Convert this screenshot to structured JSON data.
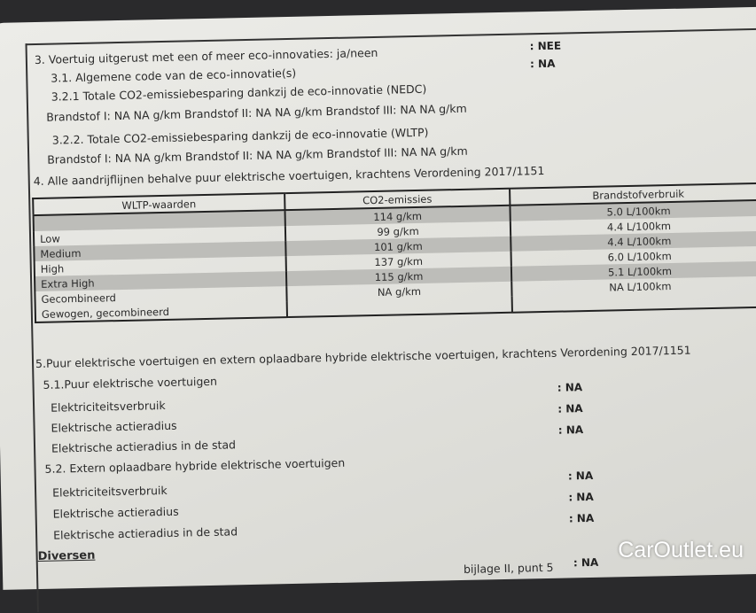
{
  "section3": {
    "title": "3. Voertuig uitgerust met een of meer eco-innovaties: ja/neen",
    "title_value": ": NEE",
    "s31": "3.1. Algemene code van de eco-innovatie(s)",
    "s31_value": ": NA",
    "s321": "3.2.1 Totale CO2-emissiebesparing dankzij de eco-innovatie (NEDC)",
    "s321_fuels": "Brandstof I: NA NA g/km  Brandstof II: NA NA g/km  Brandstof III: NA NA g/km",
    "s322": "3.2.2. Totale CO2-emissiebesparing dankzij de eco-innovatie (WLTP)",
    "s322_fuels": "Brandstof I: NA NA g/km Brandstof II: NA NA g/km Brandstof III: NA NA g/km"
  },
  "section4": {
    "title": "4. Alle aandrijflijnen behalve puur elektrische voertuigen, krachtens Verordening 2017/1151",
    "table": {
      "headers": [
        "WLTP-waarden",
        "CO2-emissies",
        "Brandstofverbruik"
      ],
      "rows": [
        [
          "",
          "114 g/km",
          "5.0 L/100km"
        ],
        [
          "Low",
          "99 g/km",
          "4.4 L/100km"
        ],
        [
          "Medium",
          "101 g/km",
          "4.4 L/100km"
        ],
        [
          "High",
          "137 g/km",
          "6.0 L/100km"
        ],
        [
          "Extra High",
          "115 g/km",
          "5.1 L/100km"
        ],
        [
          "Gecombineerd",
          "NA g/km",
          "NA L/100km"
        ],
        [
          "Gewogen, gecombineerd",
          "",
          ""
        ]
      ]
    }
  },
  "section5": {
    "title": "5.Puur elektrische voertuigen en extern oplaadbare hybride elektrische voertuigen, krachtens Verordening 2017/1151",
    "s51": "5.1.Puur elektrische voertuigen",
    "s51_items": [
      "Elektriciteitsverbruik",
      "Elektrische actieradius",
      "Elektrische actieradius in de stad"
    ],
    "s51_values": [
      ": NA",
      ": NA",
      ": NA"
    ],
    "s52": "5.2. Extern oplaadbare hybride elektrische voertuigen",
    "s52_items": [
      "Elektriciteitsverbruik",
      "Elektrische actieradius",
      "Elektrische actieradius in de stad"
    ],
    "s52_values": [
      ": NA",
      ": NA",
      ": NA"
    ]
  },
  "diversen": {
    "title": "Diversen",
    "partial_line": "bijlage II, punt 5",
    "partial_value": ": NA"
  },
  "watermark": "CarOutlet.eu"
}
